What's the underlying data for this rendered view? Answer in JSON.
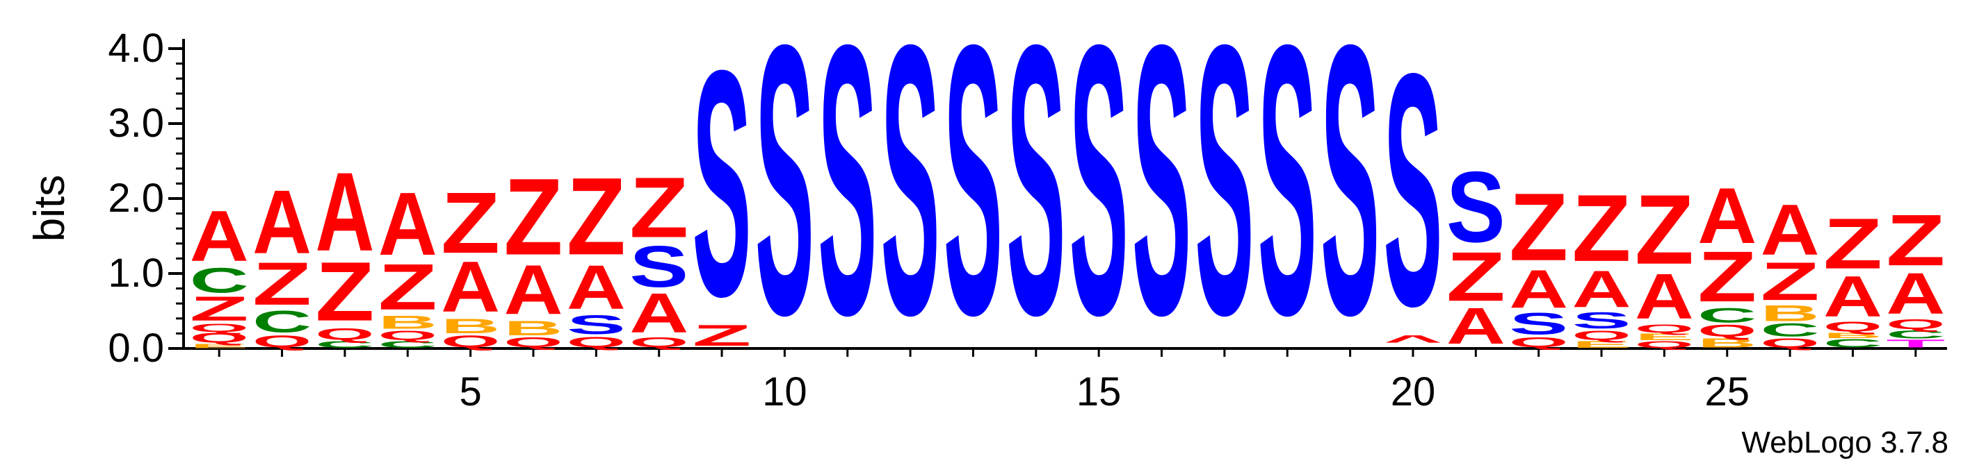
{
  "chart_data": {
    "type": "sequence-logo",
    "ylabel": "bits",
    "ylim": [
      0,
      4.0
    ],
    "yticks": [
      "0.0",
      "1.0",
      "2.0",
      "3.0",
      "4.0"
    ],
    "xticks": [
      5,
      10,
      15,
      20,
      25
    ],
    "xrange": [
      1,
      28
    ],
    "footer": "WebLogo 3.7.8",
    "colors": {
      "A": "#ff0000",
      "Z": "#ff0000",
      "Q": "#ff0000",
      "^": "#ff0000",
      "S": "#0000ff",
      "T": "#ff00ff",
      "C": "#008000",
      "B": "#ffa500",
      "E": "#ffa500"
    },
    "positions": [
      {
        "pos": 1,
        "stack": [
          [
            "E",
            0.06
          ],
          [
            "Q",
            0.15
          ],
          [
            "Q",
            0.12
          ],
          [
            "Z",
            0.37
          ],
          [
            "C",
            0.38
          ],
          [
            "A",
            0.77
          ]
        ]
      },
      {
        "pos": 2,
        "stack": [
          [
            "Q",
            0.18
          ],
          [
            "C",
            0.33
          ],
          [
            "Z",
            0.65
          ],
          [
            "A",
            0.97
          ]
        ]
      },
      {
        "pos": 3,
        "stack": [
          [
            "C",
            0.1
          ],
          [
            "Q",
            0.17
          ],
          [
            "Z",
            0.9
          ],
          [
            "A",
            1.2
          ]
        ]
      },
      {
        "pos": 4,
        "stack": [
          [
            "C",
            0.1
          ],
          [
            "Q",
            0.14
          ],
          [
            "B",
            0.2
          ],
          [
            "Z",
            0.7
          ],
          [
            "A",
            0.96
          ]
        ]
      },
      {
        "pos": 5,
        "stack": [
          [
            "Q",
            0.18
          ],
          [
            "B",
            0.22
          ],
          [
            "A",
            0.77
          ],
          [
            "Z",
            0.93
          ]
        ]
      },
      {
        "pos": 6,
        "stack": [
          [
            "Q",
            0.15
          ],
          [
            "B",
            0.22
          ],
          [
            "A",
            0.75
          ],
          [
            "Z",
            1.17
          ]
        ]
      },
      {
        "pos": 7,
        "stack": [
          [
            "Q",
            0.16
          ],
          [
            "S",
            0.29
          ],
          [
            "A",
            0.67
          ],
          [
            "Z",
            1.18
          ]
        ]
      },
      {
        "pos": 8,
        "stack": [
          [
            "Q",
            0.15
          ],
          [
            "A",
            0.6
          ],
          [
            "S",
            0.63
          ],
          [
            "Z",
            0.92
          ]
        ]
      },
      {
        "pos": 9,
        "stack": [
          [
            "Z",
            0.32
          ],
          [
            "S",
            3.45
          ]
        ]
      },
      {
        "pos": 10,
        "stack": [
          [
            "S",
            4.12
          ]
        ]
      },
      {
        "pos": 11,
        "stack": [
          [
            "S",
            4.12
          ]
        ]
      },
      {
        "pos": 12,
        "stack": [
          [
            "S",
            4.12
          ]
        ]
      },
      {
        "pos": 13,
        "stack": [
          [
            "S",
            4.12
          ]
        ]
      },
      {
        "pos": 14,
        "stack": [
          [
            "S",
            4.12
          ]
        ]
      },
      {
        "pos": 15,
        "stack": [
          [
            "S",
            4.12
          ]
        ]
      },
      {
        "pos": 16,
        "stack": [
          [
            "S",
            4.12
          ]
        ]
      },
      {
        "pos": 17,
        "stack": [
          [
            "S",
            4.12
          ]
        ]
      },
      {
        "pos": 18,
        "stack": [
          [
            "S",
            4.12
          ]
        ]
      },
      {
        "pos": 19,
        "stack": [
          [
            "S",
            4.12
          ]
        ]
      },
      {
        "pos": 20,
        "stack": [
          [
            "^",
            0.18
          ],
          [
            "S",
            3.55
          ]
        ]
      },
      {
        "pos": 21,
        "stack": [
          [
            "A",
            0.55
          ],
          [
            "Z",
            0.75
          ],
          [
            "S",
            1.08
          ]
        ]
      },
      {
        "pos": 22,
        "stack": [
          [
            "Q",
            0.15
          ],
          [
            "S",
            0.33
          ],
          [
            "A",
            0.58
          ],
          [
            "Z",
            1.03
          ]
        ]
      },
      {
        "pos": 23,
        "stack": [
          [
            "E",
            0.1
          ],
          [
            "Q",
            0.14
          ],
          [
            "S",
            0.25
          ],
          [
            "A",
            0.56
          ],
          [
            "Z",
            1.02
          ]
        ]
      },
      {
        "pos": 24,
        "stack": [
          [
            "Q",
            0.1
          ],
          [
            "E",
            0.1
          ],
          [
            "Q",
            0.12
          ],
          [
            "A",
            0.69
          ],
          [
            "Z",
            1.06
          ]
        ]
      },
      {
        "pos": 25,
        "stack": [
          [
            "B",
            0.14
          ],
          [
            "Q",
            0.18
          ],
          [
            "C",
            0.22
          ],
          [
            "Z",
            0.77
          ],
          [
            "A",
            0.85
          ]
        ]
      },
      {
        "pos": 26,
        "stack": [
          [
            "Q",
            0.14
          ],
          [
            "C",
            0.2
          ],
          [
            "B",
            0.24
          ],
          [
            "Z",
            0.58
          ],
          [
            "A",
            0.77
          ]
        ]
      },
      {
        "pos": 27,
        "stack": [
          [
            "C",
            0.13
          ],
          [
            "B",
            0.08
          ],
          [
            "Q",
            0.15
          ],
          [
            "A",
            0.62
          ],
          [
            "Z",
            0.77
          ]
        ]
      },
      {
        "pos": 28,
        "stack": [
          [
            "T",
            0.12
          ],
          [
            "C",
            0.12
          ],
          [
            "Q",
            0.15
          ],
          [
            "A",
            0.63
          ],
          [
            "Z",
            0.78
          ]
        ]
      }
    ]
  }
}
